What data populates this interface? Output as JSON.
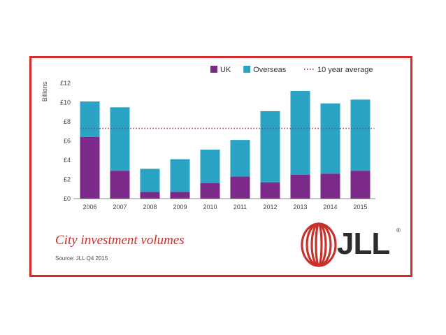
{
  "chart_data": {
    "type": "bar",
    "stacked": true,
    "title": "City investment volumes",
    "source": "Source: JLL Q4 2015",
    "ylabel": "Billions",
    "xlabel": "",
    "categories": [
      "2006",
      "2007",
      "2008",
      "2009",
      "2010",
      "2011",
      "2012",
      "2013",
      "2014",
      "2015"
    ],
    "series": [
      {
        "name": "UK",
        "color": "#7b2a8a",
        "values": [
          6.4,
          2.9,
          0.7,
          0.7,
          1.6,
          2.3,
          1.7,
          2.5,
          2.6,
          2.9
        ]
      },
      {
        "name": "Overseas",
        "color": "#2aa3c4",
        "values": [
          3.7,
          6.6,
          2.4,
          3.4,
          3.5,
          3.8,
          7.4,
          8.7,
          7.3,
          7.4
        ]
      }
    ],
    "reference_line": {
      "name": "10 year average",
      "value": 7.3,
      "color": "#d42c2c",
      "style": "dotted"
    },
    "ylim": [
      0,
      12
    ],
    "yticks": [
      0,
      2,
      4,
      6,
      8,
      10,
      12
    ],
    "ytick_labels": [
      "£0",
      "£2",
      "£4",
      "£6",
      "£8",
      "£10",
      "£12"
    ],
    "legend_position": "top-right",
    "grid": false
  },
  "branding": {
    "logo_text": "JLL",
    "registered_mark": "®",
    "accent_color": "#c8312c"
  }
}
